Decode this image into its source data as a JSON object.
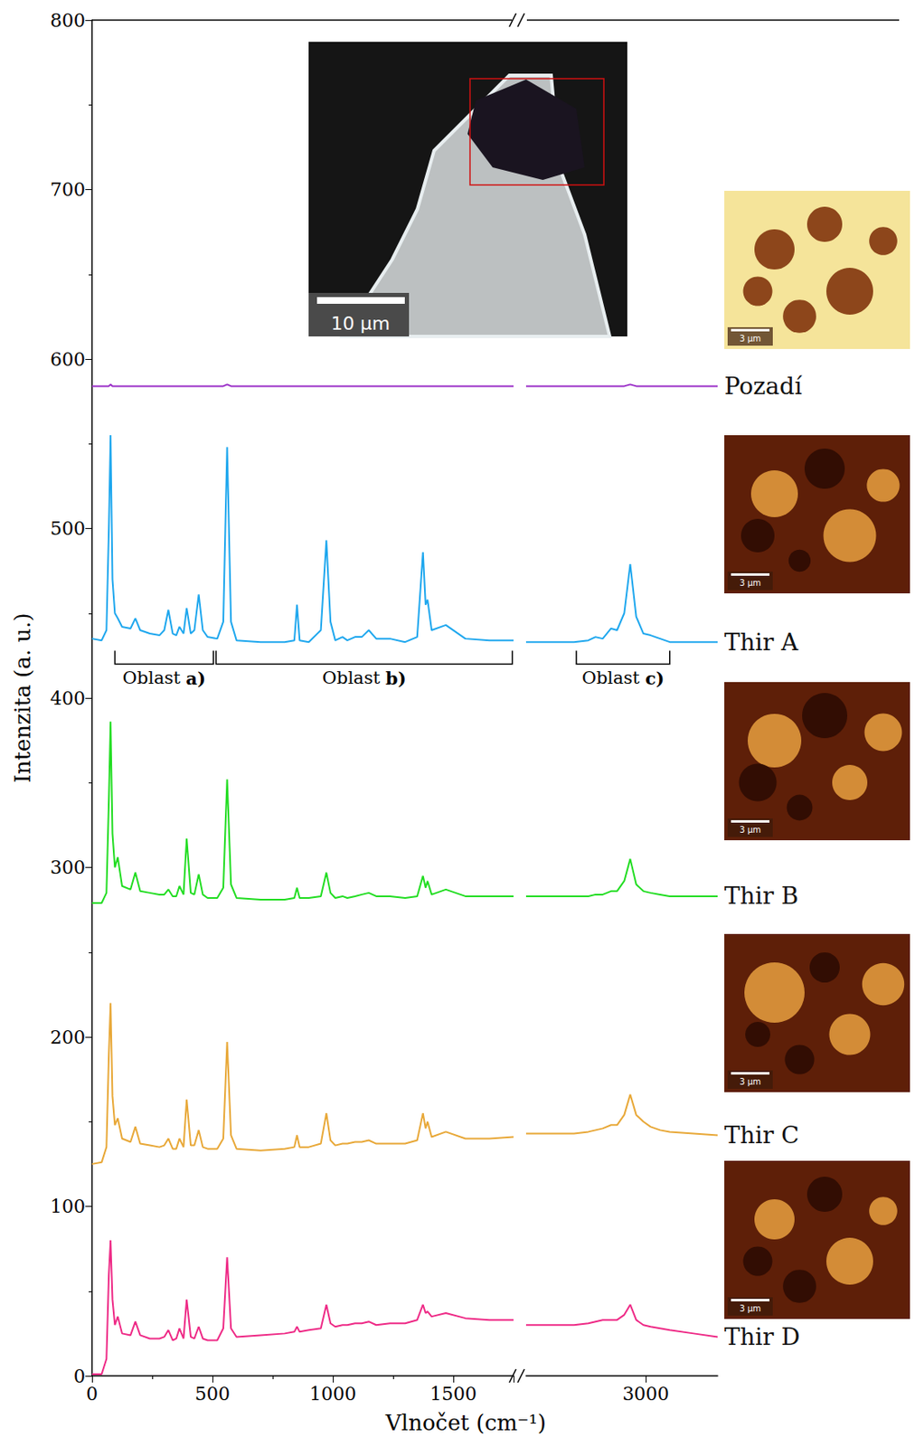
{
  "chart_data": {
    "type": "line",
    "x_label": "Vlnočet (cm⁻¹)",
    "y_label": "Intenzita (a. u.)",
    "ylim": [
      0,
      800
    ],
    "yticks": [
      0,
      100,
      200,
      300,
      400,
      500,
      600,
      700,
      800
    ],
    "panels": [
      {
        "xlim": [
          0,
          1750
        ],
        "xticks": [
          0,
          500,
          1000,
          1500
        ],
        "x": [
          0,
          40,
          60,
          70,
          77,
          85,
          95,
          107,
          125,
          160,
          180,
          200,
          240,
          280,
          300,
          317,
          335,
          350,
          363,
          380,
          393,
          410,
          425,
          443,
          460,
          480,
          520,
          545,
          561,
          577,
          600,
          700,
          800,
          840,
          851,
          862,
          900,
          950,
          973,
          990,
          1010,
          1040,
          1060,
          1092,
          1120,
          1149,
          1180,
          1237,
          1300,
          1350,
          1374,
          1385,
          1393,
          1410,
          1469,
          1550,
          1650,
          1750
        ]
      },
      {
        "xlim": [
          2500,
          3300
        ],
        "xticks": [
          3000
        ],
        "x": [
          2500,
          2600,
          2700,
          2760,
          2790,
          2820,
          2855,
          2880,
          2910,
          2935,
          2960,
          2990,
          3020,
          3060,
          3100,
          3200,
          3300
        ]
      }
    ],
    "series": [
      {
        "name": "Pozadí",
        "color": "#9b30c8",
        "values": [
          [
            584,
            584,
            584,
            584,
            585,
            584,
            584,
            584,
            584,
            584,
            584,
            584,
            584,
            584,
            584,
            584,
            584,
            584,
            584,
            584,
            584,
            584,
            584,
            584,
            584,
            584,
            584,
            584,
            585,
            584,
            584,
            584,
            584,
            584,
            584,
            584,
            584,
            584,
            584,
            584,
            584,
            584,
            584,
            584,
            584,
            584,
            584,
            584,
            584,
            584,
            584,
            584,
            584,
            584,
            584,
            584,
            584,
            584
          ],
          [
            584,
            584,
            584,
            584,
            584,
            584,
            584,
            584,
            584,
            585,
            584,
            584,
            584,
            584,
            584,
            584,
            584
          ]
        ]
      },
      {
        "name": "Thir A",
        "color": "#1ea7ee",
        "values": [
          [
            435,
            434,
            440,
            500,
            555,
            470,
            450,
            447,
            442,
            441,
            447,
            440,
            438,
            437,
            440,
            452,
            438,
            437,
            442,
            438,
            453,
            438,
            440,
            461,
            440,
            436,
            435,
            445,
            548,
            445,
            434,
            433,
            433,
            434,
            455,
            434,
            433,
            440,
            493,
            445,
            434,
            436,
            434,
            436,
            436,
            440,
            435,
            435,
            433,
            436,
            486,
            455,
            458,
            440,
            443,
            435,
            434,
            434
          ],
          [
            433,
            433,
            433,
            434,
            436,
            435,
            441,
            440,
            450,
            479,
            448,
            438,
            437,
            435,
            433,
            433,
            433
          ]
        ]
      },
      {
        "name": "Thir B",
        "color": "#22dd22",
        "values": [
          [
            279,
            279,
            285,
            340,
            386,
            320,
            300,
            306,
            289,
            287,
            297,
            286,
            285,
            284,
            284,
            287,
            283,
            283,
            289,
            284,
            317,
            285,
            284,
            296,
            284,
            282,
            282,
            288,
            352,
            290,
            282,
            281,
            281,
            282,
            288,
            282,
            282,
            283,
            297,
            285,
            282,
            283,
            282,
            283,
            284,
            285,
            283,
            283,
            282,
            283,
            295,
            288,
            292,
            284,
            287,
            283,
            283,
            283
          ],
          [
            283,
            283,
            283,
            283,
            284,
            284,
            286,
            286,
            292,
            305,
            290,
            286,
            285,
            284,
            283,
            283,
            283
          ]
        ]
      },
      {
        "name": "Thir C",
        "color": "#e8a838",
        "values": [
          [
            125,
            126,
            135,
            190,
            220,
            165,
            148,
            152,
            140,
            138,
            147,
            137,
            136,
            135,
            136,
            140,
            134,
            134,
            140,
            135,
            163,
            136,
            136,
            145,
            135,
            134,
            134,
            140,
            197,
            142,
            134,
            133,
            134,
            135,
            142,
            135,
            135,
            137,
            155,
            139,
            136,
            137,
            137,
            138,
            138,
            139,
            137,
            137,
            137,
            139,
            155,
            146,
            150,
            141,
            144,
            140,
            140,
            141
          ],
          [
            143,
            143,
            143,
            144,
            145,
            146,
            148,
            148,
            154,
            166,
            154,
            150,
            147,
            145,
            144,
            143,
            142
          ]
        ]
      },
      {
        "name": "Thir D",
        "color": "#ee2a86",
        "values": [
          [
            1,
            1,
            10,
            60,
            80,
            45,
            30,
            35,
            25,
            24,
            32,
            24,
            22,
            22,
            23,
            27,
            21,
            22,
            28,
            22,
            45,
            23,
            22,
            29,
            22,
            21,
            21,
            28,
            70,
            28,
            23,
            24,
            25,
            26,
            29,
            26,
            27,
            28,
            42,
            31,
            29,
            30,
            30,
            31,
            31,
            32,
            30,
            31,
            31,
            33,
            42,
            37,
            38,
            35,
            37,
            34,
            33,
            33
          ],
          [
            30,
            30,
            30,
            31,
            32,
            33,
            33,
            33,
            36,
            42,
            33,
            30,
            29,
            28,
            27,
            25,
            23
          ]
        ]
      }
    ],
    "annotations": [
      {
        "text": "Oblast a)",
        "panel": 0,
        "x_range": [
          95,
          504
        ],
        "y": 420
      },
      {
        "text": "Oblast b)",
        "panel": 0,
        "x_range": [
          515,
          1745
        ],
        "y": 420
      },
      {
        "text": "Oblast c)",
        "panel": 1,
        "x_range": [
          2710,
          3100
        ],
        "y": 420
      }
    ]
  },
  "insets": [
    {
      "scale_bar": "10 µm"
    },
    {
      "scale_bar": "3 µm"
    },
    {
      "scale_bar": "3 µm"
    },
    {
      "scale_bar": "3 µm"
    },
    {
      "scale_bar": "3 µm"
    },
    {
      "scale_bar": "3 µm"
    }
  ]
}
